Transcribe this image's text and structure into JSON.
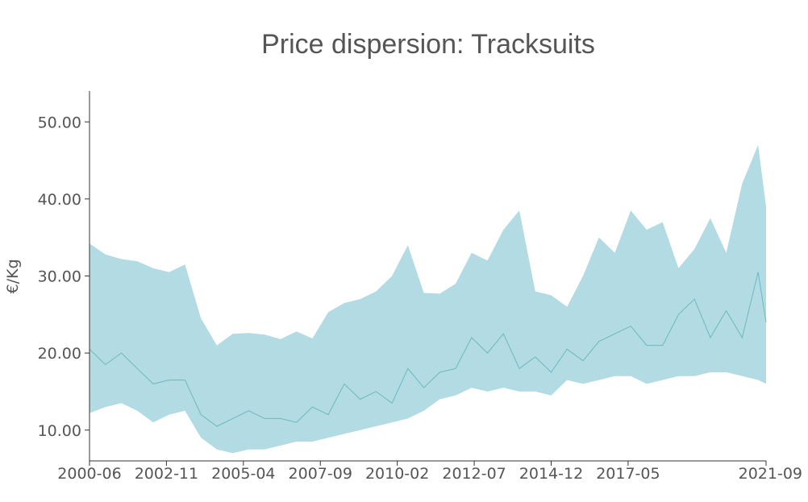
{
  "chart_data": {
    "type": "area",
    "title": "Price dispersion: Tracksuits",
    "xlabel": "",
    "ylabel": "€/Kg",
    "x_ticks": [
      "2000-06",
      "2002-11",
      "2005-04",
      "2007-09",
      "2010-02",
      "2012-07",
      "2014-12",
      "2017-05",
      "2021-09"
    ],
    "y_ticks": [
      "10.00",
      "20.00",
      "30.00",
      "40.00",
      "50.00"
    ],
    "xlim": [
      "2000-06",
      "2021-09"
    ],
    "ylim": [
      6,
      54
    ],
    "grid": false,
    "colors": {
      "band": "#b2dbe3",
      "median": "#6bb9c0",
      "axis": "#333333",
      "text": "#555555"
    },
    "x": [
      "2000-06",
      "2000-12",
      "2001-06",
      "2001-12",
      "2002-06",
      "2002-12",
      "2003-06",
      "2003-12",
      "2004-06",
      "2004-12",
      "2005-06",
      "2005-12",
      "2006-06",
      "2006-12",
      "2007-06",
      "2007-12",
      "2008-06",
      "2008-12",
      "2009-06",
      "2009-12",
      "2010-06",
      "2010-12",
      "2011-06",
      "2011-12",
      "2012-06",
      "2012-12",
      "2013-06",
      "2013-12",
      "2014-06",
      "2014-12",
      "2015-06",
      "2015-12",
      "2016-06",
      "2016-12",
      "2017-06",
      "2017-12",
      "2018-06",
      "2018-12",
      "2019-06",
      "2019-12",
      "2020-06",
      "2020-12",
      "2021-06",
      "2021-09"
    ],
    "series": [
      {
        "values": [
          34.2,
          32.8,
          32.2,
          31.9,
          31.0,
          30.5,
          31.5,
          24.5,
          21.0,
          22.5,
          22.6,
          22.4,
          21.8,
          22.8,
          21.9,
          25.3,
          26.5,
          27.0,
          28.0,
          30.0,
          34.0,
          27.8,
          27.7,
          29.0,
          33.0,
          32.0,
          36.0,
          38.5,
          28.0,
          27.5,
          26.0,
          30.0,
          35.0,
          33.0,
          38.5,
          36.0,
          37.0,
          31.0,
          33.5,
          37.5,
          33.0,
          42.0,
          47.0,
          39.0
        ]
      },
      {
        "values": [
          20.5,
          18.5,
          20.0,
          18.0,
          16.0,
          16.5,
          16.5,
          12.0,
          10.5,
          11.5,
          12.5,
          11.5,
          11.5,
          11.0,
          13.0,
          12.0,
          16.0,
          14.0,
          15.0,
          13.5,
          18.0,
          15.5,
          17.5,
          18.0,
          22.0,
          20.0,
          22.5,
          18.0,
          19.5,
          17.5,
          20.5,
          19.0,
          21.5,
          22.5,
          23.5,
          21.0,
          21.0,
          25.0,
          27.0,
          22.0,
          25.5,
          22.0,
          30.5,
          24.0
        ]
      },
      {
        "values": [
          12.2,
          13.0,
          13.5,
          12.5,
          11.0,
          12.0,
          12.5,
          9.0,
          7.5,
          7.0,
          7.5,
          7.5,
          8.0,
          8.5,
          8.5,
          9.0,
          9.5,
          10.0,
          10.5,
          11.0,
          11.5,
          12.5,
          14.0,
          14.5,
          15.5,
          15.0,
          15.5,
          15.0,
          15.0,
          14.5,
          16.5,
          16.0,
          16.5,
          17.0,
          17.0,
          16.0,
          16.5,
          17.0,
          17.0,
          17.5,
          17.5,
          17.0,
          16.5,
          16.0
        ]
      }
    ]
  }
}
